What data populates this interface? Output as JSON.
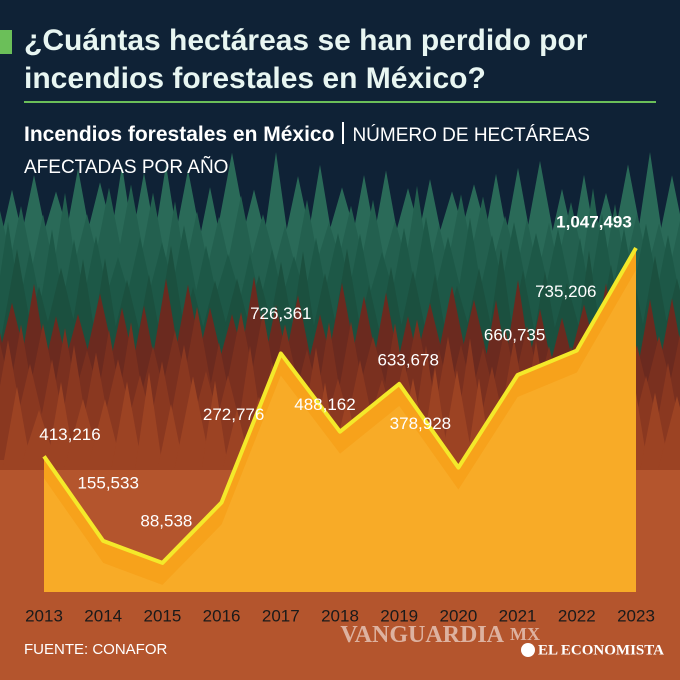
{
  "title": "¿Cuántas hectáreas se han perdido por incendios forestales en México?",
  "subtitle_bold": "Incendios forestales en México",
  "subtitle": "NÚMERO DE HECTÁREAS AFECTADAS POR AÑO",
  "source": "FUENTE: CONAFOR",
  "watermark": "VANGUARDIA",
  "watermark_suffix": "MX",
  "brand": "EL ECONOMISTA",
  "chart_data": {
    "type": "area",
    "categories": [
      "2013",
      "2014",
      "2015",
      "2016",
      "2017",
      "2018",
      "2019",
      "2020",
      "2021",
      "2022",
      "2023"
    ],
    "values": [
      413216,
      155533,
      88538,
      272776,
      726361,
      488162,
      633678,
      378928,
      660735,
      735206,
      1047493
    ],
    "value_labels": [
      "413,216",
      "155,533",
      "88,538",
      "272,776",
      "726,361",
      "488,162",
      "633,678",
      "378,928",
      "660,735",
      "735,206",
      "1,047,493"
    ],
    "fill": "#f7a21b",
    "line_color": "#f4e92a"
  }
}
